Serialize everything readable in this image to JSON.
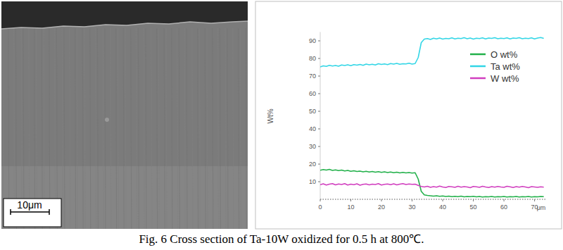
{
  "chart_data": {
    "type": "line",
    "x_label": "μm",
    "y_label": "Wt%",
    "xlim": [
      0,
      74
    ],
    "xticks": [
      0,
      10,
      20,
      30,
      40,
      50,
      60,
      70
    ],
    "ylim": [
      0,
      95
    ],
    "yticks": [
      10,
      20,
      30,
      40,
      50,
      60,
      70,
      80,
      90
    ],
    "grid": false,
    "legend": "upper right",
    "x": [
      0,
      1,
      2,
      3,
      4,
      5,
      6,
      7,
      8,
      9,
      10,
      11,
      12,
      13,
      14,
      15,
      16,
      17,
      18,
      19,
      20,
      21,
      22,
      23,
      24,
      25,
      26,
      27,
      28,
      29,
      30,
      31,
      32,
      33,
      34,
      35,
      36,
      37,
      38,
      39,
      40,
      41,
      42,
      43,
      44,
      45,
      46,
      47,
      48,
      49,
      50,
      51,
      52,
      53,
      54,
      55,
      56,
      57,
      58,
      59,
      60,
      61,
      62,
      63,
      64,
      65,
      66,
      67,
      68,
      69,
      70,
      71,
      72,
      73
    ],
    "series": [
      {
        "name": "O wt%",
        "color": "#22b04a",
        "values": [
          16.5,
          16.9,
          16.6,
          17.0,
          16.4,
          16.7,
          16.3,
          16.6,
          16.1,
          16.4,
          15.9,
          16.2,
          15.8,
          16.0,
          15.6,
          15.9,
          15.5,
          15.8,
          15.4,
          15.7,
          15.3,
          15.6,
          15.2,
          15.5,
          15.1,
          15.4,
          15.0,
          15.3,
          15.0,
          15.2,
          14.9,
          15.1,
          11.5,
          4.5,
          2.5,
          2.2,
          2.0,
          1.8,
          2.0,
          1.7,
          1.9,
          1.6,
          1.8,
          1.5,
          1.7,
          1.5,
          1.8,
          1.4,
          1.6,
          1.5,
          1.7,
          1.4,
          1.6,
          1.3,
          1.5,
          1.4,
          1.6,
          1.3,
          1.5,
          1.4,
          1.6,
          1.3,
          1.5,
          1.4,
          1.6,
          1.3,
          1.5,
          1.4,
          1.6,
          1.3,
          1.5,
          1.4,
          1.6,
          1.5
        ]
      },
      {
        "name": "Ta wt%",
        "color": "#33d6e6",
        "values": [
          75.2,
          75.8,
          75.5,
          76.1,
          75.7,
          76.0,
          75.6,
          76.3,
          76.0,
          76.4,
          75.9,
          76.5,
          76.2,
          76.6,
          76.1,
          76.8,
          76.4,
          76.7,
          76.3,
          77.0,
          76.6,
          76.9,
          76.5,
          77.1,
          76.8,
          77.2,
          76.7,
          77.0,
          76.9,
          77.3,
          76.8,
          77.1,
          80.5,
          89.0,
          91.0,
          91.3,
          90.8,
          91.5,
          91.1,
          91.6,
          91.0,
          91.4,
          91.2,
          91.7,
          91.1,
          91.5,
          91.3,
          91.8,
          91.2,
          91.6,
          91.0,
          91.5,
          91.3,
          91.7,
          91.1,
          91.6,
          91.4,
          91.8,
          91.2,
          91.5,
          91.3,
          91.7,
          91.1,
          91.6,
          91.4,
          91.8,
          91.2,
          91.5,
          91.3,
          91.7,
          91.1,
          91.6,
          91.9,
          91.4
        ]
      },
      {
        "name": "W wt%",
        "color": "#d13fbf",
        "values": [
          8.3,
          8.8,
          8.1,
          8.6,
          8.9,
          8.2,
          8.7,
          8.4,
          8.9,
          8.1,
          8.6,
          8.3,
          8.8,
          8.0,
          8.5,
          8.7,
          8.2,
          8.6,
          8.4,
          8.9,
          8.1,
          8.5,
          8.7,
          8.3,
          8.8,
          8.2,
          8.6,
          8.9,
          8.4,
          8.7,
          8.5,
          8.6,
          7.9,
          7.3,
          7.0,
          7.4,
          6.8,
          7.2,
          6.9,
          7.5,
          7.0,
          6.7,
          7.3,
          7.1,
          6.8,
          7.4,
          6.9,
          7.2,
          7.0,
          6.6,
          7.3,
          7.1,
          6.8,
          7.4,
          7.0,
          6.7,
          7.2,
          6.9,
          7.3,
          7.0,
          6.8,
          7.4,
          7.1,
          6.7,
          7.2,
          6.9,
          7.3,
          7.0,
          6.6,
          7.2,
          7.0,
          6.8,
          7.1,
          6.9
        ]
      }
    ]
  },
  "micrograph": {
    "scale_bar": "10μm"
  },
  "caption": "Fig. 6 Cross section of Ta-10W oxidized for 0.5 h at 800℃."
}
